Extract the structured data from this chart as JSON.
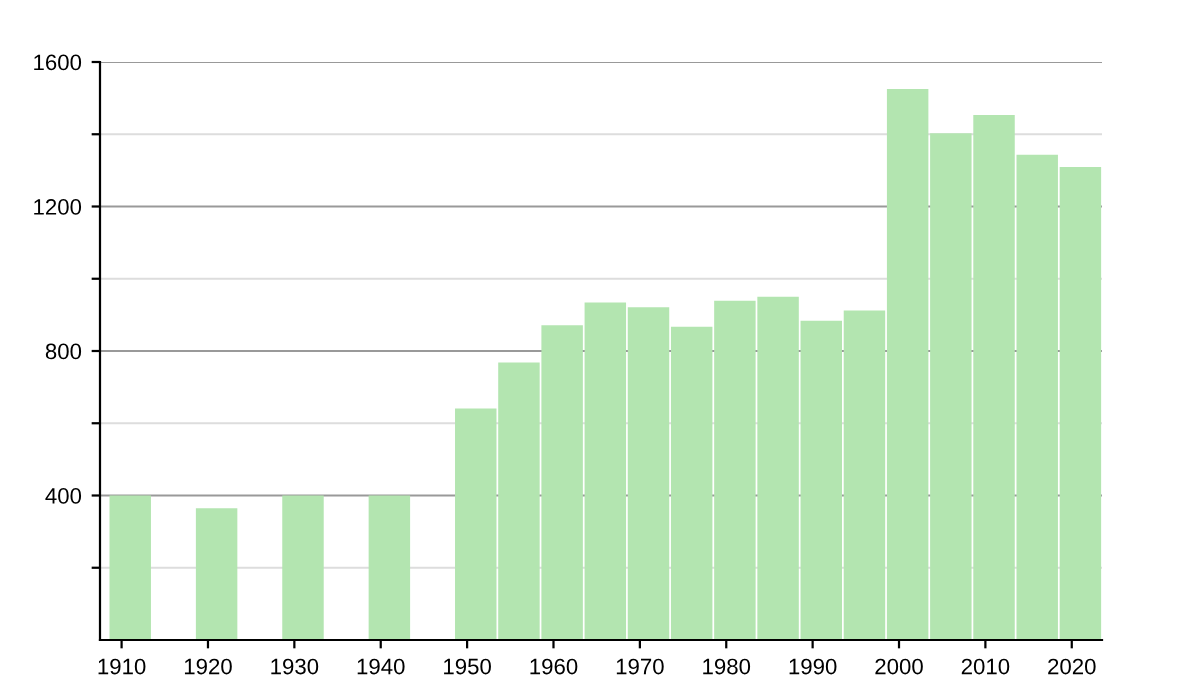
{
  "chart_data": {
    "type": "bar",
    "x": [
      1911,
      1921,
      1931,
      1941,
      1951,
      1956,
      1961,
      1966,
      1971,
      1976,
      1981,
      1986,
      1991,
      1996,
      2001,
      2006,
      2011,
      2016,
      2021
    ],
    "values": [
      400,
      365,
      400,
      400,
      641,
      768,
      871,
      934,
      921,
      867,
      939,
      950,
      884,
      912,
      1525,
      1403,
      1453,
      1343,
      1309
    ],
    "color": "#b3e5b0",
    "xlim": [
      1907.5,
      2023.5
    ],
    "xticks": [
      1910,
      1920,
      1930,
      1940,
      1950,
      1960,
      1970,
      1980,
      1990,
      2000,
      2010,
      2020
    ],
    "ylim": [
      0,
      1600
    ],
    "yticks": [
      {
        "value": 200,
        "label": null
      },
      400,
      {
        "value": 600,
        "label": null
      },
      800,
      {
        "value": 1000,
        "label": null
      },
      1200,
      {
        "value": 1400,
        "label": null
      },
      1600
    ],
    "grid": "y"
  }
}
